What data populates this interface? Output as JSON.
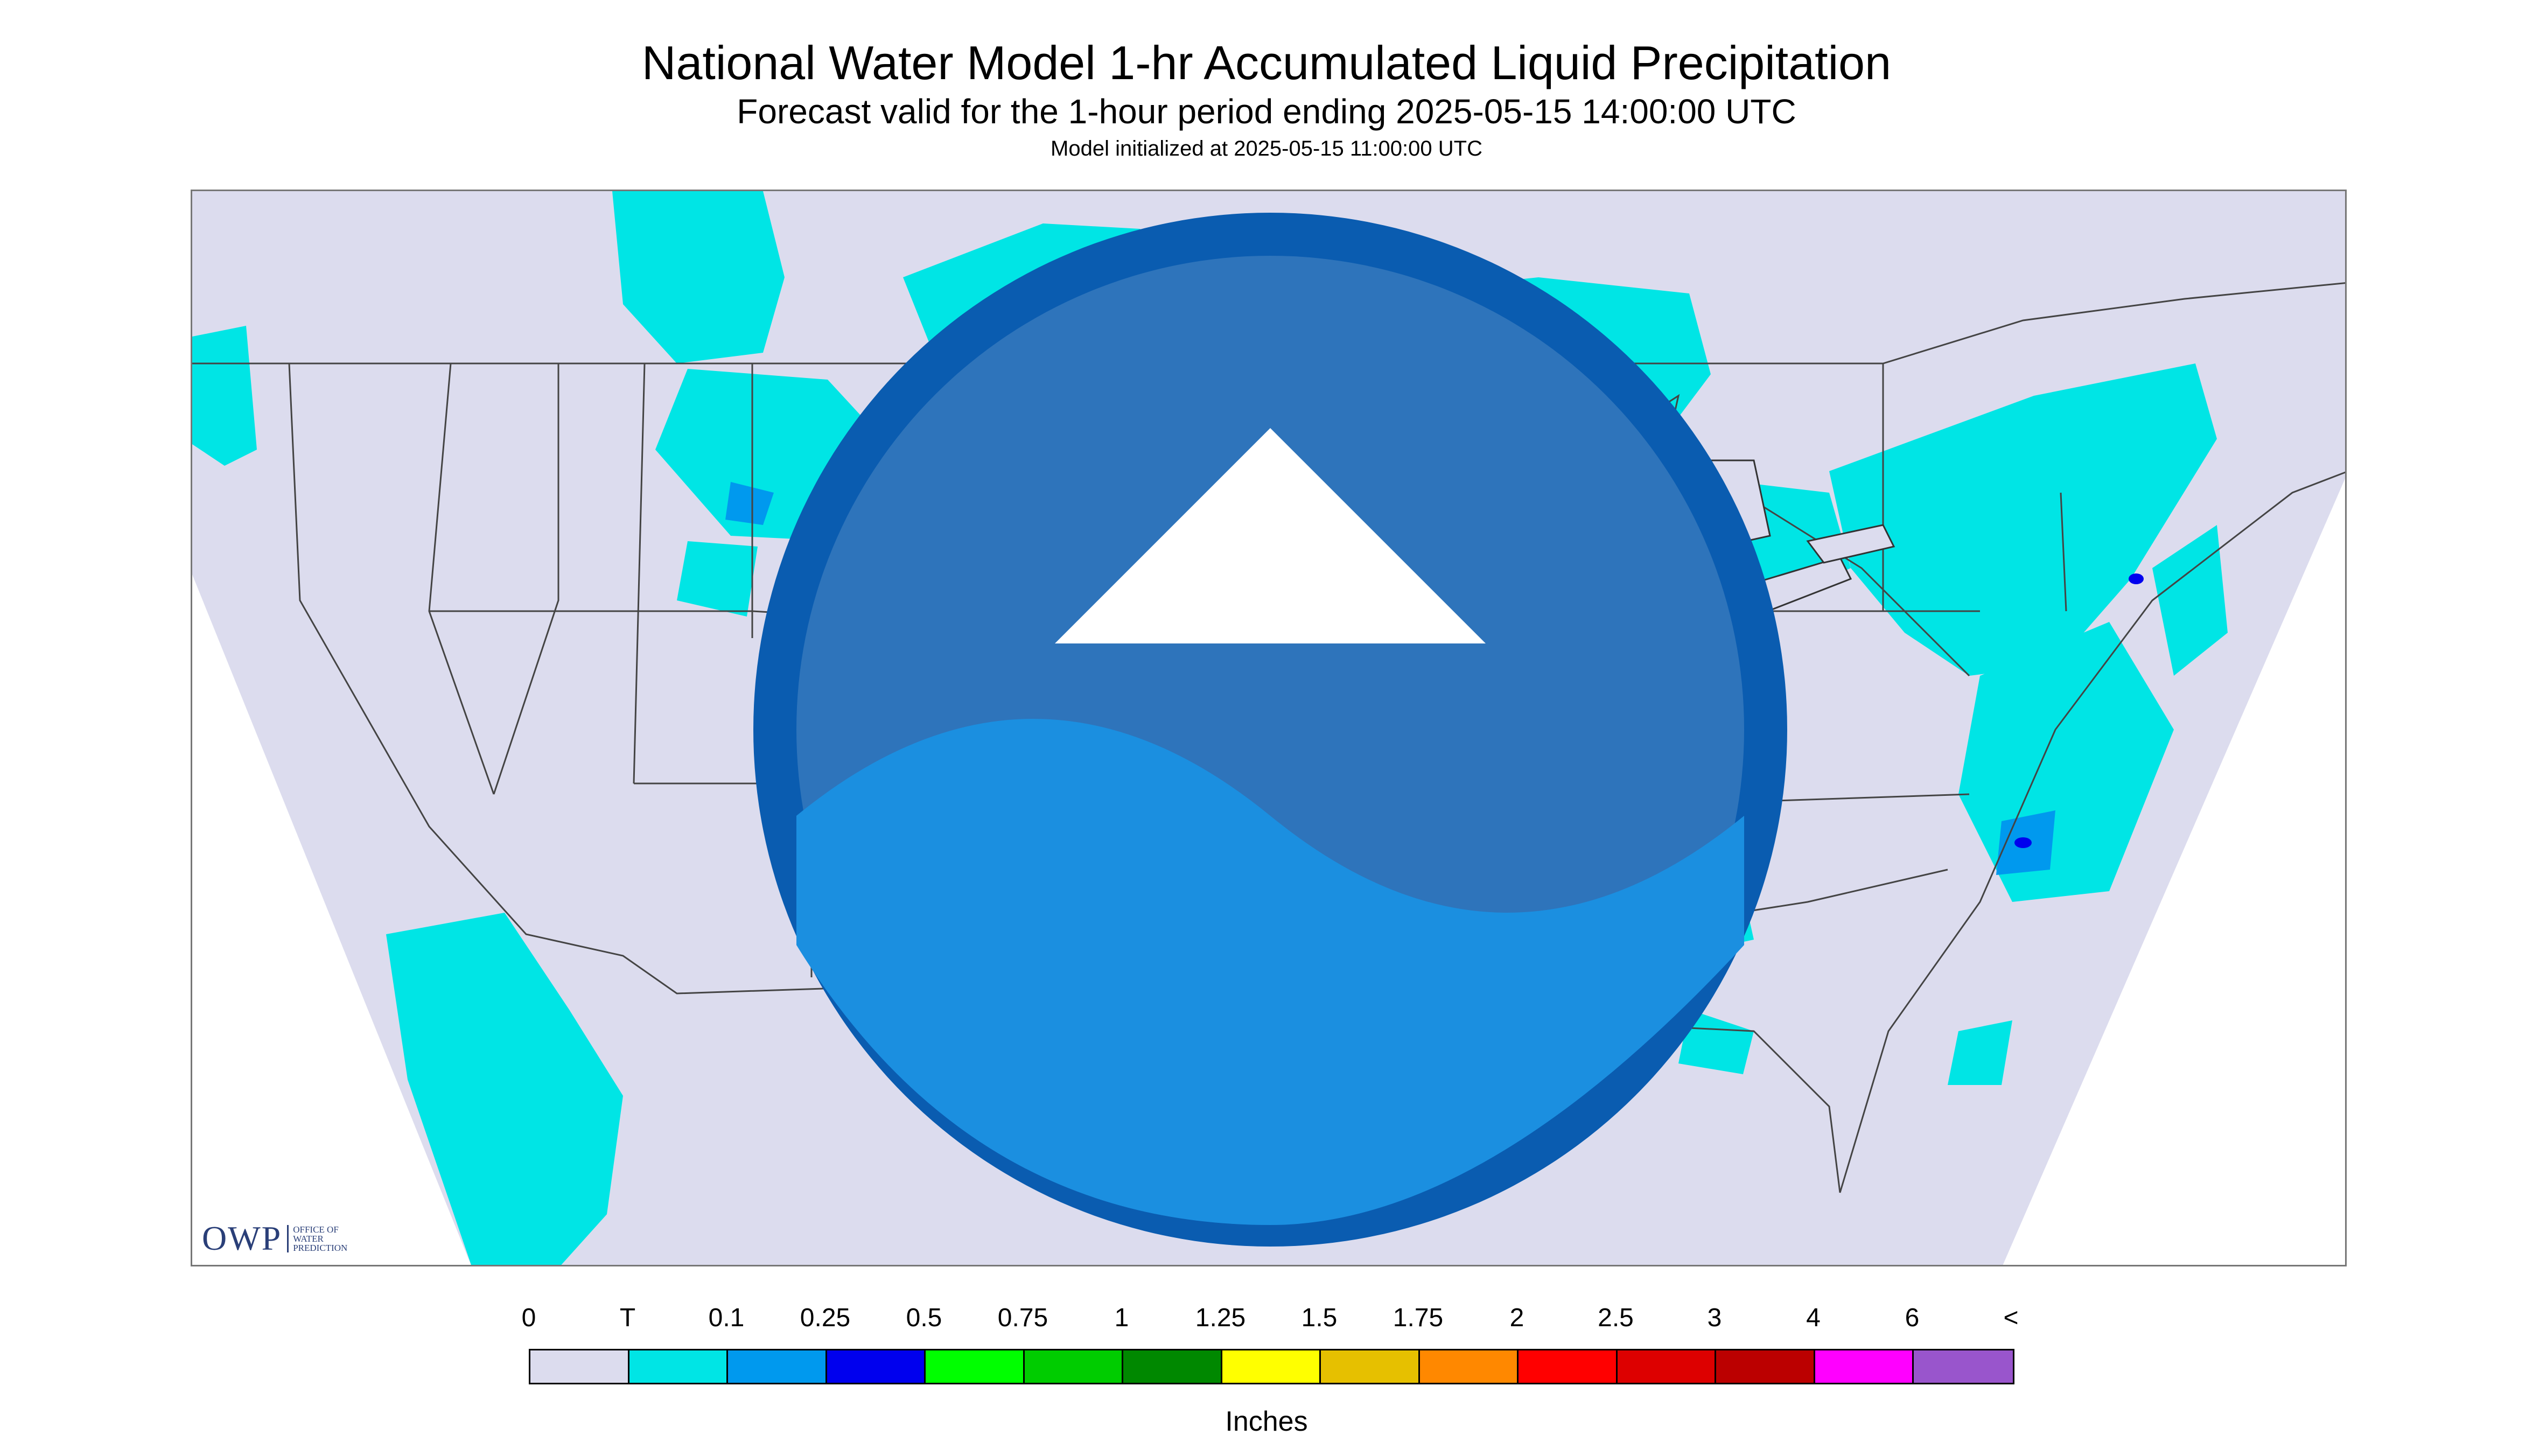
{
  "title": "National Water Model 1-hr Accumulated Liquid Precipitation",
  "subtitle": "Forecast valid for the 1-hour period ending 2025-05-15 14:00:00 UTC",
  "initialized": "Model initialized at 2025-05-15 11:00:00 UTC",
  "map": {
    "region": "Continental United States",
    "background_color": "#dcdcee",
    "outside_color": "#ffffff",
    "boundary_color": "#444444",
    "logos": {
      "owp_mark": "OWP",
      "owp_text": [
        "OFFICE OF",
        "WATER",
        "PREDICTION"
      ],
      "noaa_icon": "noaa-logo-icon"
    }
  },
  "legend": {
    "ticks": [
      "0",
      "T",
      "0.1",
      "0.25",
      "0.5",
      "0.75",
      "1",
      "1.25",
      "1.5",
      "1.75",
      "2",
      "2.5",
      "3",
      "4",
      "6",
      "<"
    ],
    "colors": [
      "#dcdcee",
      "#00e5e5",
      "#0099ee",
      "#0000ee",
      "#00ff00",
      "#00cc00",
      "#008800",
      "#ffff00",
      "#e6c000",
      "#ff8800",
      "#ff0000",
      "#dd0000",
      "#bb0000",
      "#ff00ff",
      "#9955cc"
    ],
    "units": "Inches"
  }
}
